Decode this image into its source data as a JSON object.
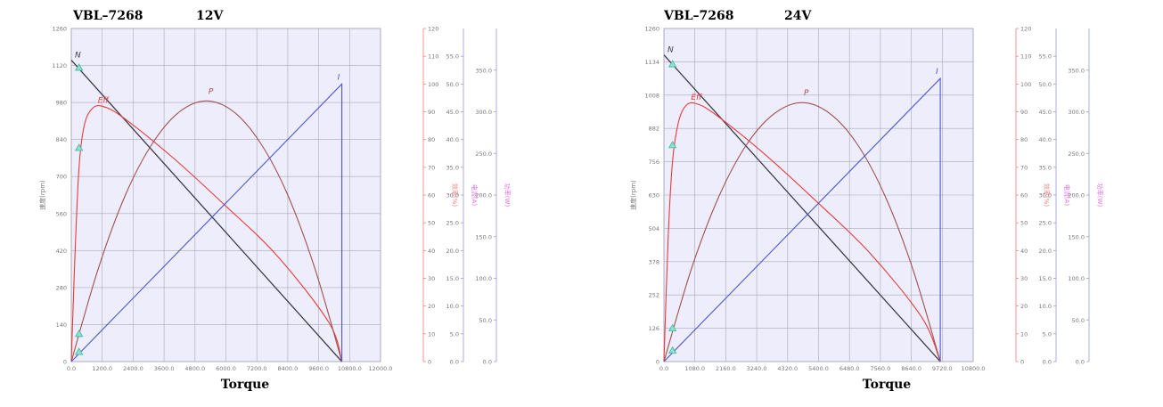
{
  "colors": {
    "plot_bg": "#ededfc",
    "grid": "#a9a9b8",
    "speed": "#3a3a4a",
    "efficiency": "#e63c3c",
    "power": "#a05050",
    "current": "#4a55d0",
    "eff_axis": "#f08080",
    "current_axis": "#9a9ae0",
    "power_axis": "#e070e0",
    "marker": "#3cb8a0"
  },
  "chart_data": [
    {
      "type": "line",
      "title": "VBL–7268",
      "voltage": "12V",
      "xlabel": "Torque",
      "ylabel_left": "速度(rpm)",
      "ylabel_eff": "效率(%)",
      "ylabel_current": "电流(A)",
      "ylabel_power": "功率(W)",
      "xlim": [
        0,
        12000
      ],
      "x_ticks": [
        "0.0",
        "1200.0",
        "2400.0",
        "3600.0",
        "4800.0",
        "6000.0",
        "7200.0",
        "8400.0",
        "9600.0",
        "10800.0",
        "12000.0"
      ],
      "ylim_speed": [
        0,
        1260
      ],
      "speed_ticks": [
        "0",
        "140",
        "280",
        "420",
        "560",
        "700",
        "840",
        "980",
        "1120",
        "1260"
      ],
      "ylim_eff": [
        0,
        120
      ],
      "eff_ticks": [
        "0",
        "10",
        "20",
        "30",
        "40",
        "50",
        "60",
        "70",
        "80",
        "90",
        "100",
        "110",
        "120"
      ],
      "ylim_current": [
        0,
        60
      ],
      "current_ticks": [
        "0.0",
        "5.0",
        "10.0",
        "15.0",
        "20.0",
        "25.0",
        "30.0",
        "35.0",
        "40.0",
        "45.0",
        "50.0",
        "55.0"
      ],
      "ylim_power": [
        0,
        400
      ],
      "power_ticks": [
        "0.0",
        "50.0",
        "100.0",
        "150.0",
        "200.0",
        "250.0",
        "300.0",
        "350.0"
      ],
      "curve_labels": {
        "speed": "N",
        "efficiency": "Eff",
        "power": "P",
        "current": "I"
      },
      "series": [
        {
          "name": "N",
          "axis": "speed",
          "x": [
            0,
            10500
          ],
          "values": [
            1140,
            0
          ]
        },
        {
          "name": "Eff",
          "axis": "efficiency",
          "x": [
            0,
            150,
            300,
            500,
            800,
            1200,
            2000,
            4000,
            6000,
            8000,
            10000,
            10500
          ],
          "values": [
            0,
            40,
            70,
            85,
            91,
            92,
            88,
            73,
            56,
            38,
            14,
            0
          ]
        },
        {
          "name": "P",
          "axis": "power",
          "x": [
            0,
            1050,
            2100,
            3150,
            4200,
            5250,
            6300,
            7350,
            8400,
            9450,
            10500
          ],
          "values": [
            0,
            112,
            200,
            262,
            300,
            313,
            300,
            262,
            200,
            112,
            0
          ]
        },
        {
          "name": "I",
          "axis": "current",
          "x": [
            0,
            10500,
            10500
          ],
          "values": [
            0,
            50,
            0
          ]
        }
      ],
      "markers": [
        {
          "axis": "speed",
          "x": 300,
          "value": 1112
        },
        {
          "axis": "efficiency",
          "x": 300,
          "value": 77
        },
        {
          "axis": "efficiency",
          "x": 300,
          "value": 10
        },
        {
          "axis": "efficiency",
          "x": 300,
          "value": 3.5
        }
      ]
    },
    {
      "type": "line",
      "title": "VBL–7268",
      "voltage": "24V",
      "xlabel": "Torque",
      "ylabel_left": "速度(rpm)",
      "ylabel_eff": "效率(%)",
      "ylabel_current": "电流(A)",
      "ylabel_power": "功率(W)",
      "xlim": [
        0,
        10800
      ],
      "x_ticks": [
        "0.0",
        "1080.0",
        "2160.0",
        "3240.0",
        "4320.0",
        "5400.0",
        "6480.0",
        "7560.0",
        "8640.0",
        "9720.0",
        "10800.0"
      ],
      "ylim_speed": [
        0,
        1260
      ],
      "speed_ticks": [
        "0",
        "126",
        "252",
        "378",
        "504",
        "630",
        "756",
        "882",
        "1008",
        "1134",
        "1260"
      ],
      "ylim_eff": [
        0,
        120
      ],
      "eff_ticks": [
        "0",
        "10",
        "20",
        "30",
        "40",
        "50",
        "60",
        "70",
        "80",
        "90",
        "100",
        "110",
        "120"
      ],
      "ylim_current": [
        0,
        60
      ],
      "current_ticks": [
        "0.0",
        "5.0",
        "10.0",
        "15.0",
        "20.0",
        "25.0",
        "30.0",
        "35.0",
        "40.0",
        "45.0",
        "50.0",
        "55.0"
      ],
      "ylim_power": [
        0,
        400
      ],
      "power_ticks": [
        "0.0",
        "50.0",
        "100.0",
        "150.0",
        "200.0",
        "250.0",
        "300.0",
        "350.0"
      ],
      "curve_labels": {
        "speed": "N",
        "efficiency": "Eff",
        "power": "P",
        "current": "I"
      },
      "series": [
        {
          "name": "N",
          "axis": "speed",
          "x": [
            0,
            9650
          ],
          "values": [
            1160,
            0
          ]
        },
        {
          "name": "Eff",
          "axis": "efficiency",
          "x": [
            0,
            150,
            300,
            500,
            750,
            1100,
            1800,
            3600,
            5400,
            7200,
            9000,
            9650
          ],
          "values": [
            0,
            45,
            72,
            86,
            92,
            93,
            89,
            74,
            57,
            39,
            16,
            0
          ]
        },
        {
          "name": "P",
          "axis": "power",
          "x": [
            0,
            965,
            1930,
            2895,
            3860,
            4825,
            5790,
            6755,
            7720,
            8685,
            9650
          ],
          "values": [
            0,
            112,
            199,
            261,
            298,
            311,
            298,
            261,
            199,
            112,
            0
          ]
        },
        {
          "name": "I",
          "axis": "current",
          "x": [
            0,
            9650,
            9650
          ],
          "values": [
            0,
            51,
            0
          ]
        }
      ],
      "markers": [
        {
          "axis": "speed",
          "x": 300,
          "value": 1125
        },
        {
          "axis": "efficiency",
          "x": 300,
          "value": 78
        },
        {
          "axis": "efficiency",
          "x": 300,
          "value": 12
        },
        {
          "axis": "efficiency",
          "x": 300,
          "value": 4
        }
      ]
    }
  ]
}
